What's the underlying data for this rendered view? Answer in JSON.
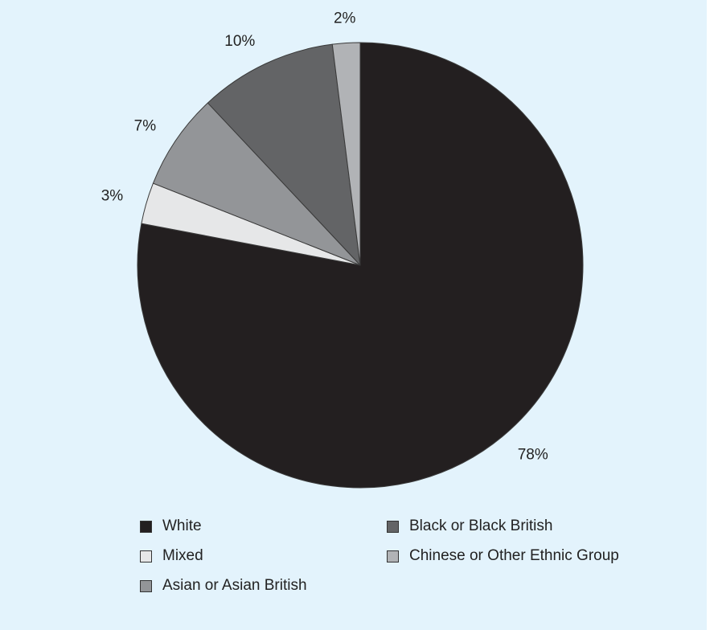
{
  "chart_data": {
    "type": "pie",
    "slices": [
      {
        "name": "White",
        "value": 78,
        "label": "78%",
        "color": "#231f20"
      },
      {
        "name": "Mixed",
        "value": 3,
        "label": "3%",
        "color": "#e6e7e8"
      },
      {
        "name": "Asian or Asian British",
        "value": 7,
        "label": "7%",
        "color": "#939598"
      },
      {
        "name": "Black or Black British",
        "value": 10,
        "label": "10%",
        "color": "#636466"
      },
      {
        "name": "Chinese or Other Ethnic Group",
        "value": 2,
        "label": "2%",
        "color": "#b1b3b6"
      }
    ],
    "start": "12 o'clock",
    "direction": "clockwise",
    "legend_position": "bottom",
    "legend": [
      {
        "label": "White",
        "color": "#231f20"
      },
      {
        "label": "Black or Black British",
        "color": "#636466"
      },
      {
        "label": "Mixed",
        "color": "#e6e7e8"
      },
      {
        "label": "Chinese or Other Ethnic Group",
        "color": "#b1b3b6"
      },
      {
        "label": "Asian or Asian British",
        "color": "#939598"
      }
    ],
    "background": "#e3f3fc"
  }
}
